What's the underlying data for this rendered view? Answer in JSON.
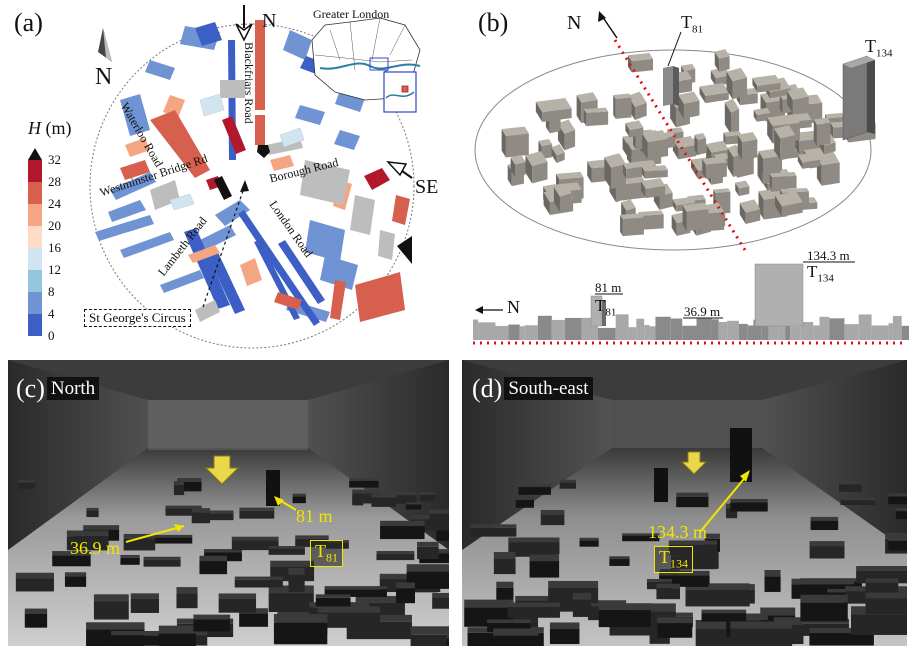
{
  "panel_a": {
    "label": "(a)",
    "north": "N",
    "north_arrow_label": "N",
    "se_label": "SE",
    "inset_title": "Greater London",
    "colorbar": {
      "title": "H (m)",
      "title_var": "H",
      "title_unit": " (m)",
      "ticks": [
        "32",
        "28",
        "24",
        "20",
        "16",
        "12",
        "8",
        "4",
        "0"
      ],
      "colors": [
        "#b2182b",
        "#d6604d",
        "#f4a582",
        "#fddbc7",
        "#d1e5f0",
        "#92c5de",
        "#6f93d3",
        "#3b5fc4"
      ]
    },
    "roads": {
      "waterloo": "Waterloo Road",
      "blackfriars": "Blackfriars Road",
      "westminster": "Westminster Bridge Rd",
      "borough": "Borough Road",
      "lambeth": "Lambeth Road",
      "london": "London Road"
    },
    "circus": "St George's Circus"
  },
  "panel_b": {
    "label": "(b)",
    "north": "N",
    "t81": "T",
    "t81_sub": "81",
    "t134": "T",
    "t134_sub": "134",
    "profile": {
      "north": "N",
      "h_t81": "81 m",
      "h_mean": "36.9 m",
      "h_t134": "134.3 m"
    }
  },
  "panel_c": {
    "label": "(c)",
    "title": "North",
    "h_mean": "36.9 m",
    "h_t81": "81 m",
    "tower": "T",
    "tower_sub": "81"
  },
  "panel_d": {
    "label": "(d)",
    "title": "South-east",
    "h_t134": "134.3 m",
    "tower": "T",
    "tower_sub": "134"
  }
}
